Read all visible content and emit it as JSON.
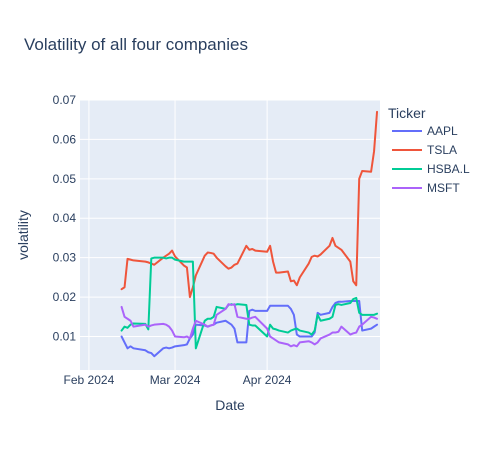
{
  "chart_data": {
    "type": "line",
    "title": "Volatility of all four companies",
    "xlabel": "Date",
    "ylabel": "volatility",
    "x_range": [
      "2024-01-29",
      "2024-05-09"
    ],
    "ylim": [
      0.0015,
      0.07
    ],
    "x_ticks": [
      {
        "date": "2024-02-01",
        "label": "Feb 2024"
      },
      {
        "date": "2024-03-01",
        "label": "Mar 2024"
      },
      {
        "date": "2024-04-01",
        "label": "Apr 2024"
      }
    ],
    "y_ticks": [
      {
        "value": 0.01,
        "label": "0.01"
      },
      {
        "value": 0.02,
        "label": "0.02"
      },
      {
        "value": 0.03,
        "label": "0.03"
      },
      {
        "value": 0.04,
        "label": "0.04"
      },
      {
        "value": 0.05,
        "label": "0.05"
      },
      {
        "value": 0.06,
        "label": "0.06"
      },
      {
        "value": 0.07,
        "label": "0.07"
      }
    ],
    "grid": true,
    "legend": {
      "title": "Ticker",
      "position": "right"
    },
    "series": [
      {
        "name": "AAPL",
        "color": "#636efa",
        "points": [
          [
            "2024-02-12",
            0.01
          ],
          [
            "2024-02-13",
            0.0085
          ],
          [
            "2024-02-14",
            0.007
          ],
          [
            "2024-02-15",
            0.0075
          ],
          [
            "2024-02-16",
            0.007
          ],
          [
            "2024-02-20",
            0.0065
          ],
          [
            "2024-02-21",
            0.006
          ],
          [
            "2024-02-22",
            0.0058
          ],
          [
            "2024-02-23",
            0.005
          ],
          [
            "2024-02-26",
            0.007
          ],
          [
            "2024-02-27",
            0.0072
          ],
          [
            "2024-02-28",
            0.007
          ],
          [
            "2024-02-29",
            0.0072
          ],
          [
            "2024-03-01",
            0.0075
          ],
          [
            "2024-03-04",
            0.0078
          ],
          [
            "2024-03-05",
            0.008
          ],
          [
            "2024-03-06",
            0.0095
          ],
          [
            "2024-03-07",
            0.0105
          ],
          [
            "2024-03-08",
            0.013
          ],
          [
            "2024-03-11",
            0.0128
          ],
          [
            "2024-03-12",
            0.0125
          ],
          [
            "2024-03-13",
            0.0128
          ],
          [
            "2024-03-14",
            0.013
          ],
          [
            "2024-03-15",
            0.0135
          ],
          [
            "2024-03-18",
            0.014
          ],
          [
            "2024-03-19",
            0.0135
          ],
          [
            "2024-03-20",
            0.013
          ],
          [
            "2024-03-21",
            0.012
          ],
          [
            "2024-03-22",
            0.0085
          ],
          [
            "2024-03-25",
            0.0085
          ],
          [
            "2024-03-26",
            0.0165
          ],
          [
            "2024-03-27",
            0.0168
          ],
          [
            "2024-03-28",
            0.0165
          ],
          [
            "2024-04-01",
            0.0165
          ],
          [
            "2024-04-02",
            0.0178
          ],
          [
            "2024-04-03",
            0.0178
          ],
          [
            "2024-04-04",
            0.0178
          ],
          [
            "2024-04-05",
            0.0178
          ],
          [
            "2024-04-08",
            0.0178
          ],
          [
            "2024-04-09",
            0.017
          ],
          [
            "2024-04-10",
            0.0155
          ],
          [
            "2024-04-11",
            0.0105
          ],
          [
            "2024-04-12",
            0.01
          ],
          [
            "2024-04-15",
            0.01
          ],
          [
            "2024-04-16",
            0.01
          ],
          [
            "2024-04-17",
            0.011
          ],
          [
            "2024-04-18",
            0.016
          ],
          [
            "2024-04-19",
            0.0155
          ],
          [
            "2024-04-22",
            0.016
          ],
          [
            "2024-04-23",
            0.0175
          ],
          [
            "2024-04-24",
            0.0185
          ],
          [
            "2024-04-25",
            0.0188
          ],
          [
            "2024-04-26",
            0.0188
          ],
          [
            "2024-04-29",
            0.019
          ],
          [
            "2024-04-30",
            0.019
          ],
          [
            "2024-05-01",
            0.019
          ],
          [
            "2024-05-02",
            0.019
          ],
          [
            "2024-05-03",
            0.0115
          ],
          [
            "2024-05-06",
            0.012
          ],
          [
            "2024-05-07",
            0.0125
          ],
          [
            "2024-05-08",
            0.013
          ]
        ]
      },
      {
        "name": "TSLA",
        "color": "#ef553b",
        "points": [
          [
            "2024-02-12",
            0.022
          ],
          [
            "2024-02-13",
            0.0225
          ],
          [
            "2024-02-14",
            0.0297
          ],
          [
            "2024-02-15",
            0.0295
          ],
          [
            "2024-02-16",
            0.0293
          ],
          [
            "2024-02-20",
            0.029
          ],
          [
            "2024-02-21",
            0.0288
          ],
          [
            "2024-02-22",
            0.0285
          ],
          [
            "2024-02-23",
            0.0282
          ],
          [
            "2024-02-26",
            0.03
          ],
          [
            "2024-02-27",
            0.0305
          ],
          [
            "2024-02-28",
            0.031
          ],
          [
            "2024-02-29",
            0.0318
          ],
          [
            "2024-03-01",
            0.0303
          ],
          [
            "2024-03-04",
            0.028
          ],
          [
            "2024-03-05",
            0.0275
          ],
          [
            "2024-03-06",
            0.02
          ],
          [
            "2024-03-07",
            0.0225
          ],
          [
            "2024-03-08",
            0.0255
          ],
          [
            "2024-03-11",
            0.0305
          ],
          [
            "2024-03-12",
            0.0313
          ],
          [
            "2024-03-13",
            0.0312
          ],
          [
            "2024-03-14",
            0.031
          ],
          [
            "2024-03-15",
            0.03
          ],
          [
            "2024-03-18",
            0.0278
          ],
          [
            "2024-03-19",
            0.0272
          ],
          [
            "2024-03-20",
            0.0275
          ],
          [
            "2024-03-21",
            0.0282
          ],
          [
            "2024-03-22",
            0.0285
          ],
          [
            "2024-03-25",
            0.033
          ],
          [
            "2024-03-26",
            0.032
          ],
          [
            "2024-03-27",
            0.0322
          ],
          [
            "2024-03-28",
            0.0318
          ],
          [
            "2024-04-01",
            0.0315
          ],
          [
            "2024-04-02",
            0.033
          ],
          [
            "2024-04-03",
            0.029
          ],
          [
            "2024-04-04",
            0.0262
          ],
          [
            "2024-04-05",
            0.0262
          ],
          [
            "2024-04-08",
            0.0265
          ],
          [
            "2024-04-09",
            0.024
          ],
          [
            "2024-04-10",
            0.0242
          ],
          [
            "2024-04-11",
            0.023
          ],
          [
            "2024-04-12",
            0.025
          ],
          [
            "2024-04-15",
            0.0285
          ],
          [
            "2024-04-16",
            0.0302
          ],
          [
            "2024-04-17",
            0.0305
          ],
          [
            "2024-04-18",
            0.0303
          ],
          [
            "2024-04-19",
            0.0308
          ],
          [
            "2024-04-22",
            0.033
          ],
          [
            "2024-04-23",
            0.035
          ],
          [
            "2024-04-24",
            0.033
          ],
          [
            "2024-04-25",
            0.0325
          ],
          [
            "2024-04-26",
            0.032
          ],
          [
            "2024-04-29",
            0.029
          ],
          [
            "2024-04-30",
            0.024
          ],
          [
            "2024-05-01",
            0.023
          ],
          [
            "2024-05-02",
            0.05
          ],
          [
            "2024-05-03",
            0.052
          ],
          [
            "2024-05-06",
            0.0518
          ],
          [
            "2024-05-07",
            0.057
          ],
          [
            "2024-05-08",
            0.067
          ]
        ]
      },
      {
        "name": "HSBA.L",
        "color": "#00cc96",
        "points": [
          [
            "2024-02-12",
            0.0115
          ],
          [
            "2024-02-13",
            0.0125
          ],
          [
            "2024-02-14",
            0.0122
          ],
          [
            "2024-02-15",
            0.013
          ],
          [
            "2024-02-16",
            0.0133
          ],
          [
            "2024-02-20",
            0.0132
          ],
          [
            "2024-02-21",
            0.0118
          ],
          [
            "2024-02-22",
            0.0298
          ],
          [
            "2024-02-23",
            0.03
          ],
          [
            "2024-02-26",
            0.03
          ],
          [
            "2024-02-27",
            0.0298
          ],
          [
            "2024-02-28",
            0.03
          ],
          [
            "2024-02-29",
            0.03
          ],
          [
            "2024-03-01",
            0.0295
          ],
          [
            "2024-03-04",
            0.029
          ],
          [
            "2024-03-05",
            0.029
          ],
          [
            "2024-03-06",
            0.029
          ],
          [
            "2024-03-07",
            0.029
          ],
          [
            "2024-03-08",
            0.007
          ],
          [
            "2024-03-11",
            0.014
          ],
          [
            "2024-03-12",
            0.0145
          ],
          [
            "2024-03-13",
            0.0145
          ],
          [
            "2024-03-14",
            0.015
          ],
          [
            "2024-03-15",
            0.0175
          ],
          [
            "2024-03-18",
            0.017
          ],
          [
            "2024-03-19",
            0.018
          ],
          [
            "2024-03-20",
            0.0182
          ],
          [
            "2024-03-21",
            0.018
          ],
          [
            "2024-03-22",
            0.0182
          ],
          [
            "2024-03-25",
            0.018
          ],
          [
            "2024-03-26",
            0.013
          ],
          [
            "2024-03-27",
            0.0128
          ],
          [
            "2024-03-28",
            0.0128
          ],
          [
            "2024-04-01",
            0.01
          ],
          [
            "2024-04-02",
            0.013
          ],
          [
            "2024-04-03",
            0.012
          ],
          [
            "2024-04-04",
            0.0118
          ],
          [
            "2024-04-05",
            0.0115
          ],
          [
            "2024-04-08",
            0.011
          ],
          [
            "2024-04-09",
            0.0115
          ],
          [
            "2024-04-10",
            0.0118
          ],
          [
            "2024-04-11",
            0.012
          ],
          [
            "2024-04-12",
            0.0115
          ],
          [
            "2024-04-15",
            0.011
          ],
          [
            "2024-04-16",
            0.0105
          ],
          [
            "2024-04-17",
            0.0115
          ],
          [
            "2024-04-18",
            0.0155
          ],
          [
            "2024-04-19",
            0.014
          ],
          [
            "2024-04-22",
            0.0145
          ],
          [
            "2024-04-23",
            0.015
          ],
          [
            "2024-04-24",
            0.018
          ],
          [
            "2024-04-25",
            0.0182
          ],
          [
            "2024-04-26",
            0.018
          ],
          [
            "2024-04-29",
            0.0185
          ],
          [
            "2024-04-30",
            0.0195
          ],
          [
            "2024-05-01",
            0.0198
          ],
          [
            "2024-05-02",
            0.016
          ],
          [
            "2024-05-03",
            0.0155
          ],
          [
            "2024-05-06",
            0.0155
          ],
          [
            "2024-05-07",
            0.0155
          ],
          [
            "2024-05-08",
            0.0158
          ]
        ]
      },
      {
        "name": "MSFT",
        "color": "#ab63fa",
        "points": [
          [
            "2024-02-12",
            0.0175
          ],
          [
            "2024-02-13",
            0.015
          ],
          [
            "2024-02-14",
            0.0145
          ],
          [
            "2024-02-15",
            0.014
          ],
          [
            "2024-02-16",
            0.0125
          ],
          [
            "2024-02-20",
            0.013
          ],
          [
            "2024-02-21",
            0.0125
          ],
          [
            "2024-02-22",
            0.0128
          ],
          [
            "2024-02-23",
            0.013
          ],
          [
            "2024-02-26",
            0.0132
          ],
          [
            "2024-02-27",
            0.013
          ],
          [
            "2024-02-28",
            0.0125
          ],
          [
            "2024-02-29",
            0.0115
          ],
          [
            "2024-03-01",
            0.01
          ],
          [
            "2024-03-04",
            0.0098
          ],
          [
            "2024-03-05",
            0.01
          ],
          [
            "2024-03-06",
            0.0095
          ],
          [
            "2024-03-07",
            0.012
          ],
          [
            "2024-03-08",
            0.014
          ],
          [
            "2024-03-11",
            0.013
          ],
          [
            "2024-03-12",
            0.0125
          ],
          [
            "2024-03-13",
            0.0128
          ],
          [
            "2024-03-14",
            0.013
          ],
          [
            "2024-03-15",
            0.0155
          ],
          [
            "2024-03-18",
            0.017
          ],
          [
            "2024-03-19",
            0.0182
          ],
          [
            "2024-03-20",
            0.018
          ],
          [
            "2024-03-21",
            0.0182
          ],
          [
            "2024-03-22",
            0.015
          ],
          [
            "2024-03-25",
            0.0145
          ],
          [
            "2024-03-26",
            0.0145
          ],
          [
            "2024-03-27",
            0.0148
          ],
          [
            "2024-03-28",
            0.015
          ],
          [
            "2024-04-01",
            0.012
          ],
          [
            "2024-04-02",
            0.01
          ],
          [
            "2024-04-03",
            0.0095
          ],
          [
            "2024-04-04",
            0.009
          ],
          [
            "2024-04-05",
            0.0085
          ],
          [
            "2024-04-08",
            0.008
          ],
          [
            "2024-04-09",
            0.0075
          ],
          [
            "2024-04-10",
            0.0078
          ],
          [
            "2024-04-11",
            0.0075
          ],
          [
            "2024-04-12",
            0.0085
          ],
          [
            "2024-04-15",
            0.0088
          ],
          [
            "2024-04-16",
            0.0085
          ],
          [
            "2024-04-17",
            0.008
          ],
          [
            "2024-04-18",
            0.0085
          ],
          [
            "2024-04-19",
            0.0095
          ],
          [
            "2024-04-22",
            0.0105
          ],
          [
            "2024-04-23",
            0.011
          ],
          [
            "2024-04-24",
            0.011
          ],
          [
            "2024-04-25",
            0.0112
          ],
          [
            "2024-04-26",
            0.0125
          ],
          [
            "2024-04-29",
            0.0105
          ],
          [
            "2024-04-30",
            0.0108
          ],
          [
            "2024-05-01",
            0.011
          ],
          [
            "2024-05-02",
            0.0125
          ],
          [
            "2024-05-03",
            0.013
          ],
          [
            "2024-05-06",
            0.015
          ],
          [
            "2024-05-07",
            0.0148
          ],
          [
            "2024-05-08",
            0.0145
          ]
        ]
      }
    ]
  }
}
